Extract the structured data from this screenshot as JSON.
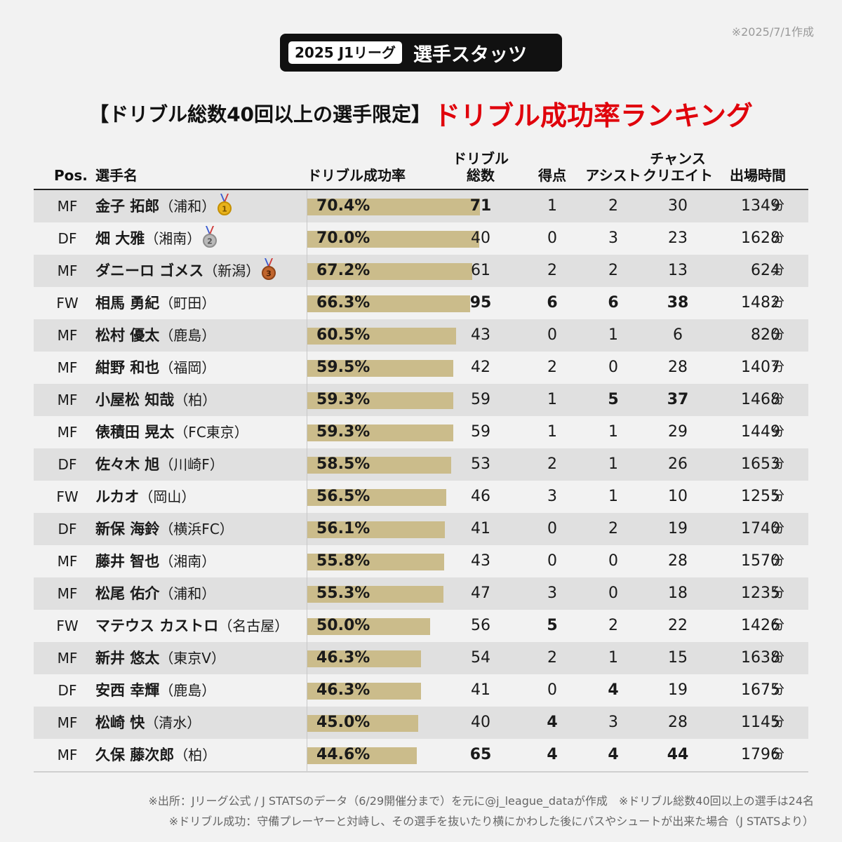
{
  "date_note": "※2025/7/1作成",
  "title_tag": "2025 J1リーグ",
  "title_main": "選手スタッツ",
  "subtitle_left": "【ドリブル総数40回以上の選手限定】",
  "subtitle_right": "ドリブル成功率ランキング",
  "unit_minutes": "分",
  "colors": {
    "bar": "#cbbc8b",
    "accent": "#e0000b",
    "row_alt": "#e0e0e0"
  },
  "chart_data": {
    "type": "table",
    "title": "ドリブル成功率ランキング",
    "columns": [
      "Pos.",
      "選手名",
      "ドリブル成功率",
      "ドリブル総数",
      "得点",
      "アシスト",
      "チャンスクリエイト",
      "出場時間"
    ],
    "header": {
      "pos": "Pos.",
      "name": "選手名",
      "rate": "ドリブル成功率",
      "dribbles_line1": "ドリブル",
      "dribbles_line2": "総数",
      "goals": "得点",
      "assists": "アシスト",
      "chance_line1": "チャンス",
      "chance_line2": "クリエイト",
      "minutes": "出場時間"
    },
    "rate_scale_max": 100,
    "rows": [
      {
        "pos": "MF",
        "name": "金子 拓郎",
        "team": "（浦和）",
        "medal": 1,
        "rate": 70.4,
        "rate_label": "70.4%",
        "dribbles": 71,
        "goals": 1,
        "assists": 2,
        "chances": 30,
        "minutes": 1349,
        "bold": [
          "dribbles"
        ]
      },
      {
        "pos": "DF",
        "name": "畑 大雅",
        "team": "（湘南）",
        "medal": 2,
        "rate": 70.0,
        "rate_label": "70.0%",
        "dribbles": 40,
        "goals": 0,
        "assists": 3,
        "chances": 23,
        "minutes": 1628,
        "bold": []
      },
      {
        "pos": "MF",
        "name": "ダニーロ ゴメス",
        "team": "（新潟）",
        "medal": 3,
        "rate": 67.2,
        "rate_label": "67.2%",
        "dribbles": 61,
        "goals": 2,
        "assists": 2,
        "chances": 13,
        "minutes": 624,
        "bold": []
      },
      {
        "pos": "FW",
        "name": "相馬 勇紀",
        "team": "（町田）",
        "medal": 0,
        "rate": 66.3,
        "rate_label": "66.3%",
        "dribbles": 95,
        "goals": 6,
        "assists": 6,
        "chances": 38,
        "minutes": 1482,
        "bold": [
          "dribbles",
          "goals",
          "assists",
          "chances"
        ]
      },
      {
        "pos": "MF",
        "name": "松村 優太",
        "team": "（鹿島）",
        "medal": 0,
        "rate": 60.5,
        "rate_label": "60.5%",
        "dribbles": 43,
        "goals": 0,
        "assists": 1,
        "chances": 6,
        "minutes": 820,
        "bold": []
      },
      {
        "pos": "MF",
        "name": "紺野 和也",
        "team": "（福岡）",
        "medal": 0,
        "rate": 59.5,
        "rate_label": "59.5%",
        "dribbles": 42,
        "goals": 2,
        "assists": 0,
        "chances": 28,
        "minutes": 1407,
        "bold": []
      },
      {
        "pos": "MF",
        "name": "小屋松 知哉",
        "team": "（柏）",
        "medal": 0,
        "rate": 59.3,
        "rate_label": "59.3%",
        "dribbles": 59,
        "goals": 1,
        "assists": 5,
        "chances": 37,
        "minutes": 1468,
        "bold": [
          "assists",
          "chances"
        ]
      },
      {
        "pos": "MF",
        "name": "俵積田 晃太",
        "team": "（FC東京）",
        "medal": 0,
        "rate": 59.3,
        "rate_label": "59.3%",
        "dribbles": 59,
        "goals": 1,
        "assists": 1,
        "chances": 29,
        "minutes": 1449,
        "bold": []
      },
      {
        "pos": "DF",
        "name": "佐々木 旭",
        "team": "（川崎F）",
        "medal": 0,
        "rate": 58.5,
        "rate_label": "58.5%",
        "dribbles": 53,
        "goals": 2,
        "assists": 1,
        "chances": 26,
        "minutes": 1653,
        "bold": []
      },
      {
        "pos": "FW",
        "name": "ルカオ",
        "team": "（岡山）",
        "medal": 0,
        "rate": 56.5,
        "rate_label": "56.5%",
        "dribbles": 46,
        "goals": 3,
        "assists": 1,
        "chances": 10,
        "minutes": 1255,
        "bold": []
      },
      {
        "pos": "DF",
        "name": "新保 海鈴",
        "team": "（横浜FC）",
        "medal": 0,
        "rate": 56.1,
        "rate_label": "56.1%",
        "dribbles": 41,
        "goals": 0,
        "assists": 2,
        "chances": 19,
        "minutes": 1740,
        "bold": []
      },
      {
        "pos": "MF",
        "name": "藤井 智也",
        "team": "（湘南）",
        "medal": 0,
        "rate": 55.8,
        "rate_label": "55.8%",
        "dribbles": 43,
        "goals": 0,
        "assists": 0,
        "chances": 28,
        "minutes": 1570,
        "bold": []
      },
      {
        "pos": "MF",
        "name": "松尾 佑介",
        "team": "（浦和）",
        "medal": 0,
        "rate": 55.3,
        "rate_label": "55.3%",
        "dribbles": 47,
        "goals": 3,
        "assists": 0,
        "chances": 18,
        "minutes": 1235,
        "bold": []
      },
      {
        "pos": "FW",
        "name": "マテウス カストロ",
        "team": "（名古屋）",
        "medal": 0,
        "rate": 50.0,
        "rate_label": "50.0%",
        "dribbles": 56,
        "goals": 5,
        "assists": 2,
        "chances": 22,
        "minutes": 1426,
        "bold": [
          "goals"
        ]
      },
      {
        "pos": "MF",
        "name": "新井 悠太",
        "team": "（東京V）",
        "medal": 0,
        "rate": 46.3,
        "rate_label": "46.3%",
        "dribbles": 54,
        "goals": 2,
        "assists": 1,
        "chances": 15,
        "minutes": 1638,
        "bold": []
      },
      {
        "pos": "DF",
        "name": "安西 幸輝",
        "team": "（鹿島）",
        "medal": 0,
        "rate": 46.3,
        "rate_label": "46.3%",
        "dribbles": 41,
        "goals": 0,
        "assists": 4,
        "chances": 19,
        "minutes": 1675,
        "bold": [
          "assists"
        ]
      },
      {
        "pos": "MF",
        "name": "松崎 快",
        "team": "（清水）",
        "medal": 0,
        "rate": 45.0,
        "rate_label": "45.0%",
        "dribbles": 40,
        "goals": 4,
        "assists": 3,
        "chances": 28,
        "minutes": 1145,
        "bold": [
          "goals"
        ]
      },
      {
        "pos": "MF",
        "name": "久保 藤次郎",
        "team": "（柏）",
        "medal": 0,
        "rate": 44.6,
        "rate_label": "44.6%",
        "dribbles": 65,
        "goals": 4,
        "assists": 4,
        "chances": 44,
        "minutes": 1796,
        "bold": [
          "dribbles",
          "goals",
          "assists",
          "chances"
        ]
      }
    ]
  },
  "footnote_1": "※出所：Jリーグ公式 / J STATSのデータ（6/29開催分まで）を元に@j_league_dataが作成　※ドリブル総数40回以上の選手は24名",
  "footnote_2": "※ドリブル成功：守備プレーヤーと対峙し、その選手を抜いたり横にかわした後にパスやシュートが出来た場合（J STATSより）"
}
